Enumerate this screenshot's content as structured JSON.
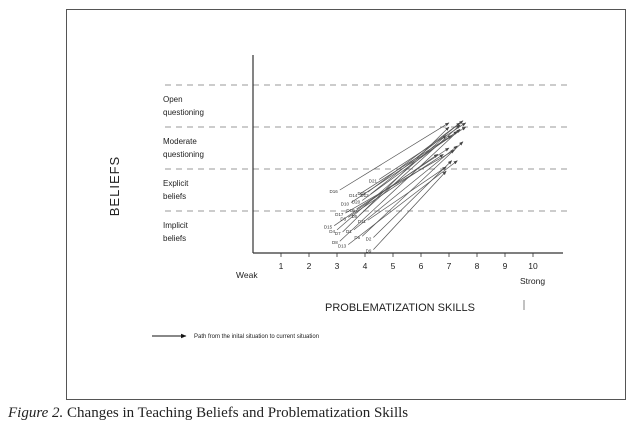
{
  "caption": {
    "figure_label": "Figure 2.",
    "text": " Changes in Teaching Beliefs and Problematization Skills"
  },
  "chart_data": {
    "type": "arrow-scatter",
    "xlabel": "PROBLEMATIZATION SKILLS",
    "ylabel": "BELIEFS",
    "x_ticks": [
      "1",
      "2",
      "3",
      "4",
      "5",
      "6",
      "7",
      "8",
      "9",
      "10"
    ],
    "x_end_labels": {
      "low": "Weak",
      "high": "Strong"
    },
    "xlim": [
      0,
      10.5
    ],
    "ylim": [
      0,
      4
    ],
    "belief_levels": [
      {
        "lines": [
          "Implicit",
          "beliefs"
        ]
      },
      {
        "lines": [
          "Explicit",
          "beliefs"
        ]
      },
      {
        "lines": [
          "Moderate",
          "questioning"
        ]
      },
      {
        "lines": [
          "Open",
          "questioning"
        ]
      }
    ],
    "level_boundaries": [
      1,
      2,
      3,
      4
    ],
    "legend": "Path from the inital situation to current situation",
    "arrows": [
      {
        "label": "D1",
        "from": [
          3.6,
          0.55
        ],
        "to": [
          7.3,
          2.55
        ]
      },
      {
        "label": "D2",
        "from": [
          4.3,
          0.37
        ],
        "to": [
          7.1,
          2.2
        ]
      },
      {
        "label": "D3",
        "from": [
          3.4,
          0.85
        ],
        "to": [
          6.8,
          2.35
        ]
      },
      {
        "label": "D4",
        "from": [
          3.0,
          0.55
        ],
        "to": [
          6.9,
          2.8
        ]
      },
      {
        "label": "D5",
        "from": [
          3.8,
          0.9
        ],
        "to": [
          7.4,
          3.05
        ]
      },
      {
        "label": "D6",
        "from": [
          3.9,
          0.4
        ],
        "to": [
          7.5,
          2.65
        ]
      },
      {
        "label": "D7",
        "from": [
          3.2,
          0.5
        ],
        "to": [
          7.0,
          3.0
        ]
      },
      {
        "label": "D8",
        "from": [
          3.1,
          0.28
        ],
        "to": [
          7.4,
          2.95
        ]
      },
      {
        "label": "D9",
        "from": [
          4.3,
          0.08
        ],
        "to": [
          6.9,
          1.95
        ]
      },
      {
        "label": "D10",
        "from": [
          3.5,
          1.2
        ],
        "to": [
          7.6,
          3.0
        ]
      },
      {
        "label": "D11",
        "from": [
          4.1,
          0.78
        ],
        "to": [
          6.9,
          2.05
        ]
      },
      {
        "label": "D12",
        "from": [
          4.2,
          1.4
        ],
        "to": [
          7.5,
          3.15
        ]
      },
      {
        "label": "D13",
        "from": [
          3.4,
          0.2
        ],
        "to": [
          7.3,
          2.2
        ]
      },
      {
        "label": "D14",
        "from": [
          3.8,
          1.4
        ],
        "to": [
          7.1,
          2.8
        ]
      },
      {
        "label": "D15",
        "from": [
          2.9,
          0.65
        ],
        "to": [
          6.6,
          2.35
        ]
      },
      {
        "label": "D16",
        "from": [
          3.1,
          1.5
        ],
        "to": [
          7.0,
          3.1
        ]
      },
      {
        "label": "D17",
        "from": [
          3.3,
          0.95
        ],
        "to": [
          7.2,
          2.45
        ]
      },
      {
        "label": "D18",
        "from": [
          4.1,
          1.45
        ],
        "to": [
          7.4,
          3.1
        ]
      },
      {
        "label": "D19",
        "from": [
          3.7,
          1.05
        ],
        "to": [
          7.0,
          2.5
        ]
      },
      {
        "label": "D20",
        "from": [
          3.9,
          1.25
        ],
        "to": [
          7.3,
          2.9
        ]
      },
      {
        "label": "D21",
        "from": [
          4.5,
          1.75
        ],
        "to": [
          7.6,
          3.1
        ]
      }
    ]
  }
}
